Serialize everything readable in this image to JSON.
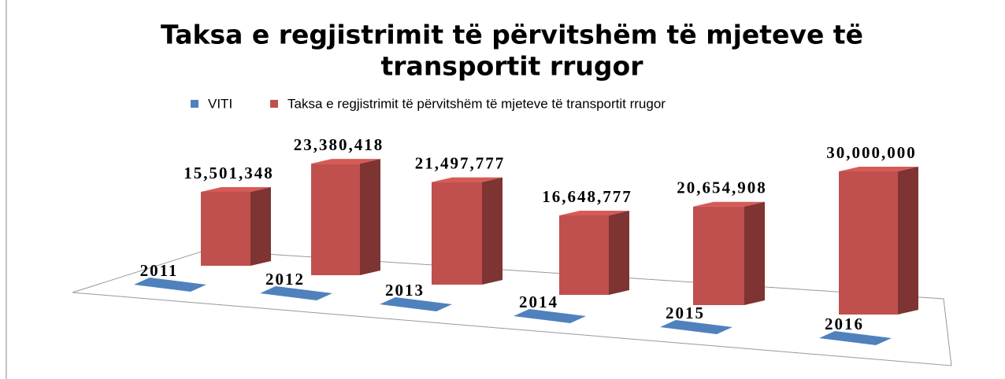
{
  "chart_data": {
    "type": "bar3d",
    "title": "Taksa e regjistrimit të përvitshëm të mjeteve të transportit rrugor",
    "title_lines": [
      "Taksa e regjistrimit të përvitshëm të mjeteve të",
      "transportit rrugor"
    ],
    "series": [
      {
        "name": "VITI",
        "color": "#4f81bd",
        "values": [
          2011,
          2012,
          2013,
          2014,
          2015,
          2016
        ]
      },
      {
        "name": "Taksa e regjistrimit të përvitshëm të mjeteve të transportit rrugor",
        "color": "#c0504d",
        "values": [
          15501348,
          23380418,
          21497777,
          16648777,
          20654908,
          30000000
        ],
        "value_labels": [
          "15,501,348",
          "23,380,418",
          "21,497,777",
          "16,648,777",
          "20,654,908",
          "30,000,000"
        ]
      }
    ],
    "legend": "top"
  }
}
